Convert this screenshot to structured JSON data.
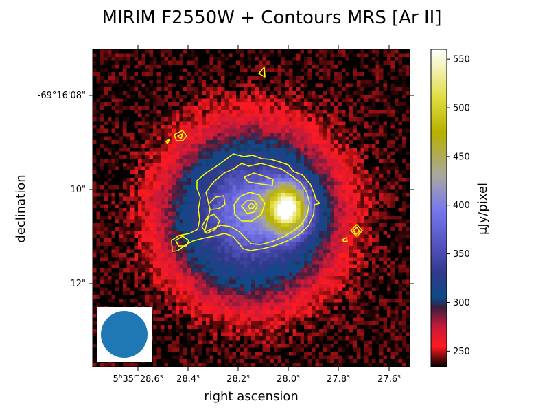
{
  "chart_data": {
    "type": "heatmap",
    "title": "MIRIM F2550W + Contours MRS [Ar II]",
    "xlabel": "right ascension",
    "ylabel": "declination",
    "x_ticks": [
      {
        "h": "5",
        "m": "35",
        "s": "28.6",
        "label": "5h35m28.6s"
      },
      {
        "s": "28.4",
        "label": "28.4s"
      },
      {
        "s": "28.2",
        "label": "28.2s"
      },
      {
        "s": "28.0",
        "label": "28.0s"
      },
      {
        "s": "27.8",
        "label": "27.8s"
      },
      {
        "s": "27.6",
        "label": "27.6s"
      }
    ],
    "y_ticks": [
      "-69°16'08\"",
      "10\"",
      "12\""
    ],
    "colorbar": {
      "label": "μJy/pixel",
      "range": [
        234,
        560
      ],
      "ticks": [
        250,
        300,
        350,
        400,
        450,
        500,
        550
      ],
      "colors": [
        {
          "v": 234,
          "c": "#000000"
        },
        {
          "v": 255,
          "c": "#ff1a20"
        },
        {
          "v": 275,
          "c": "#c81a3a"
        },
        {
          "v": 295,
          "c": "#3a1e3e"
        },
        {
          "v": 305,
          "c": "#0d4a86"
        },
        {
          "v": 330,
          "c": "#303a8a"
        },
        {
          "v": 350,
          "c": "#4a4ab0"
        },
        {
          "v": 395,
          "c": "#7878ee"
        },
        {
          "v": 430,
          "c": "#a8a8a0"
        },
        {
          "v": 475,
          "c": "#b8b000"
        },
        {
          "v": 510,
          "c": "#e0dc40"
        },
        {
          "v": 560,
          "c": "#ffffff"
        }
      ]
    },
    "image_model": {
      "background": 236,
      "ring_peak": 268,
      "core_peak": 560,
      "peak_ra_s": 28.0,
      "peak_dec_arcsec": 10.4
    },
    "contour_color": "#ffff00",
    "beam": {
      "color": "#1f77b4",
      "frame": "#ffffff"
    }
  }
}
